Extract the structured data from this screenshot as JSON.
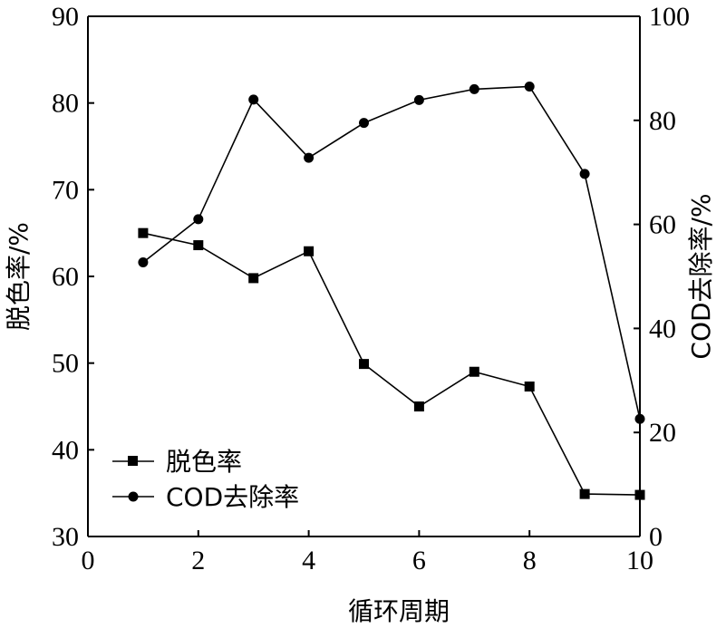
{
  "chart_data": {
    "type": "line",
    "title": "",
    "xlabel": "循环周期",
    "ylabel_left": "脱色率/%",
    "ylabel_right": "COD去除率/%",
    "xlim": [
      0,
      10
    ],
    "ylim_left": [
      30,
      90
    ],
    "ylim_right": [
      0,
      100
    ],
    "x_ticks": [
      0,
      2,
      4,
      6,
      8,
      10
    ],
    "y_left_ticks": [
      30,
      40,
      50,
      60,
      70,
      80,
      90
    ],
    "y_right_ticks": [
      0,
      20,
      40,
      60,
      80,
      100
    ],
    "grid": false,
    "legend_position": "bottom-left",
    "series": [
      {
        "name": "脱色率",
        "axis": "left",
        "marker": "square",
        "x": [
          1,
          2,
          3,
          4,
          5,
          6,
          7,
          8,
          9,
          10
        ],
        "values": [
          65.0,
          63.6,
          59.8,
          62.9,
          49.9,
          45.0,
          49.0,
          47.3,
          34.9,
          34.8
        ]
      },
      {
        "name": "COD去除率",
        "axis": "right",
        "marker": "circle",
        "x": [
          1,
          2,
          3,
          4,
          5,
          6,
          7,
          8,
          9,
          10
        ],
        "values": [
          52.7,
          61.0,
          84.0,
          72.8,
          79.5,
          83.9,
          86.0,
          86.5,
          69.7,
          22.6
        ]
      }
    ]
  }
}
